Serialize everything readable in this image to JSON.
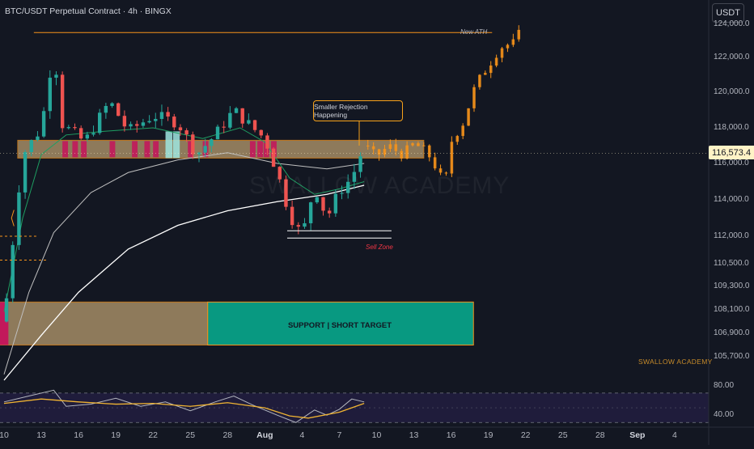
{
  "header": {
    "title": "BTC/USDT Perpetual Contract · 4h · BINGX",
    "currency_button": "USDT"
  },
  "current_price": "116,573.4",
  "watermark": "SWALLOW ACADEMY",
  "annotations": {
    "rejection": "Smaller Rejection Happening",
    "ath": "New ATH",
    "sell_zone": "Sell Zone",
    "support": "SUPPORT | SHORT TARGET"
  },
  "colors": {
    "background": "#131722",
    "up": "#26a69a",
    "down": "#ef5350",
    "projection": "#f7931a",
    "resistance_zone": "#b89b6e",
    "support_zone": "#089981",
    "marker": "#c2185b",
    "rsi_band": "#2a2150"
  },
  "chart_data": [
    {
      "type": "candlestick",
      "title": "BTC/USDT Perpetual Contract · 4h · BINGX",
      "y_ticks": [
        "124,000.0",
        "122,000.0",
        "120,000.0",
        "118,000.0",
        "116,000.0",
        "114,000.0",
        "112,000.0",
        "110,500.0",
        "109,300.0",
        "108,100.0",
        "106,900.0",
        "105,700.0"
      ],
      "x_ticks": [
        "10",
        "13",
        "16",
        "19",
        "22",
        "25",
        "28",
        "Aug",
        "4",
        "7",
        "10",
        "13",
        "16",
        "19",
        "22",
        "25",
        "28",
        "Sep",
        "4"
      ],
      "price_scale": "log",
      "ylim": [
        104500,
        125500
      ],
      "last_price": 116573.4,
      "close_path": [
        {
          "d": 0.0,
          "p": 107500
        },
        {
          "d": 1.5,
          "p": 116500
        },
        {
          "d": 3.0,
          "p": 118000
        },
        {
          "d": 4.0,
          "p": 122500
        },
        {
          "d": 4.7,
          "p": 118200
        },
        {
          "d": 6.5,
          "p": 117200
        },
        {
          "d": 8.5,
          "p": 119500
        },
        {
          "d": 10.0,
          "p": 117800
        },
        {
          "d": 12.0,
          "p": 118700
        },
        {
          "d": 14.0,
          "p": 118300
        },
        {
          "d": 15.5,
          "p": 116500
        },
        {
          "d": 17.0,
          "p": 117600
        },
        {
          "d": 18.5,
          "p": 119000
        },
        {
          "d": 20.0,
          "p": 118000
        },
        {
          "d": 21.0,
          "p": 117400
        },
        {
          "d": 22.0,
          "p": 115500
        },
        {
          "d": 23.0,
          "p": 113200
        },
        {
          "d": 24.0,
          "p": 112000
        },
        {
          "d": 25.0,
          "p": 114800
        },
        {
          "d": 26.0,
          "p": 113000
        },
        {
          "d": 27.0,
          "p": 114500
        },
        {
          "d": 28.0,
          "p": 115200
        },
        {
          "d": 29.0,
          "p": 117000
        }
      ],
      "projection_path": [
        {
          "d": 29.0,
          "p": 117000
        },
        {
          "d": 30.0,
          "p": 116400
        },
        {
          "d": 31.0,
          "p": 117000
        },
        {
          "d": 32.0,
          "p": 116500
        },
        {
          "d": 33.0,
          "p": 117100
        },
        {
          "d": 34.0,
          "p": 116700
        },
        {
          "d": 35.0,
          "p": 115500
        },
        {
          "d": 35.5,
          "p": 114800
        },
        {
          "d": 36.0,
          "p": 117200
        },
        {
          "d": 37.0,
          "p": 118300
        },
        {
          "d": 38.0,
          "p": 120500
        },
        {
          "d": 39.0,
          "p": 121500
        },
        {
          "d": 40.0,
          "p": 122600
        },
        {
          "d": 41.0,
          "p": 122900
        },
        {
          "d": 42.0,
          "p": 124100
        }
      ],
      "ema_slow": [
        {
          "d": 0,
          "p": 104500
        },
        {
          "d": 3,
          "p": 106800
        },
        {
          "d": 6,
          "p": 109000
        },
        {
          "d": 10,
          "p": 111300
        },
        {
          "d": 14,
          "p": 112600
        },
        {
          "d": 18,
          "p": 113400
        },
        {
          "d": 22,
          "p": 113900
        },
        {
          "d": 26,
          "p": 114300
        },
        {
          "d": 29,
          "p": 114800
        }
      ],
      "ema_mid": [
        {
          "d": 0,
          "p": 104800
        },
        {
          "d": 2,
          "p": 109000
        },
        {
          "d": 4,
          "p": 112200
        },
        {
          "d": 7,
          "p": 114400
        },
        {
          "d": 10,
          "p": 115500
        },
        {
          "d": 14,
          "p": 116200
        },
        {
          "d": 18,
          "p": 116600
        },
        {
          "d": 22,
          "p": 116000
        },
        {
          "d": 26,
          "p": 115700
        },
        {
          "d": 29,
          "p": 116000
        }
      ],
      "ema_fast": [
        {
          "d": 0,
          "p": 108000
        },
        {
          "d": 1.5,
          "p": 113000
        },
        {
          "d": 3,
          "p": 116500
        },
        {
          "d": 5,
          "p": 117600
        },
        {
          "d": 8,
          "p": 117800
        },
        {
          "d": 12,
          "p": 118000
        },
        {
          "d": 16,
          "p": 117400
        },
        {
          "d": 19,
          "p": 118000
        },
        {
          "d": 21,
          "p": 117200
        },
        {
          "d": 23,
          "p": 115200
        },
        {
          "d": 25,
          "p": 114300
        },
        {
          "d": 27,
          "p": 114600
        },
        {
          "d": 29,
          "p": 115000
        }
      ],
      "resistance_zone": [
        116300,
        117300
      ],
      "support_zone": [
        106300,
        108500
      ],
      "ath_line": 123500,
      "sell_zone_lines": [
        111900,
        112300
      ]
    },
    {
      "type": "line",
      "indicator": "RSI",
      "y_ticks": [
        "80.00",
        "40.00"
      ],
      "band": [
        30,
        70
      ],
      "rsi": [
        {
          "d": 0,
          "v": 58
        },
        {
          "d": 2,
          "v": 66
        },
        {
          "d": 4,
          "v": 74
        },
        {
          "d": 5,
          "v": 52
        },
        {
          "d": 7,
          "v": 55
        },
        {
          "d": 9,
          "v": 63
        },
        {
          "d": 11,
          "v": 52
        },
        {
          "d": 13,
          "v": 58
        },
        {
          "d": 15,
          "v": 46
        },
        {
          "d": 17,
          "v": 58
        },
        {
          "d": 18.5,
          "v": 66
        },
        {
          "d": 20,
          "v": 54
        },
        {
          "d": 22,
          "v": 40
        },
        {
          "d": 23.5,
          "v": 30
        },
        {
          "d": 25,
          "v": 47
        },
        {
          "d": 26,
          "v": 40
        },
        {
          "d": 27,
          "v": 48
        },
        {
          "d": 28,
          "v": 62
        },
        {
          "d": 29,
          "v": 58
        }
      ],
      "rsi_ma": [
        {
          "d": 0,
          "v": 56
        },
        {
          "d": 3,
          "v": 62
        },
        {
          "d": 6,
          "v": 58
        },
        {
          "d": 9,
          "v": 55
        },
        {
          "d": 12,
          "v": 56
        },
        {
          "d": 15,
          "v": 52
        },
        {
          "d": 18,
          "v": 57
        },
        {
          "d": 21,
          "v": 50
        },
        {
          "d": 23,
          "v": 39
        },
        {
          "d": 24.5,
          "v": 36
        },
        {
          "d": 27,
          "v": 44
        },
        {
          "d": 29,
          "v": 56
        }
      ]
    }
  ]
}
